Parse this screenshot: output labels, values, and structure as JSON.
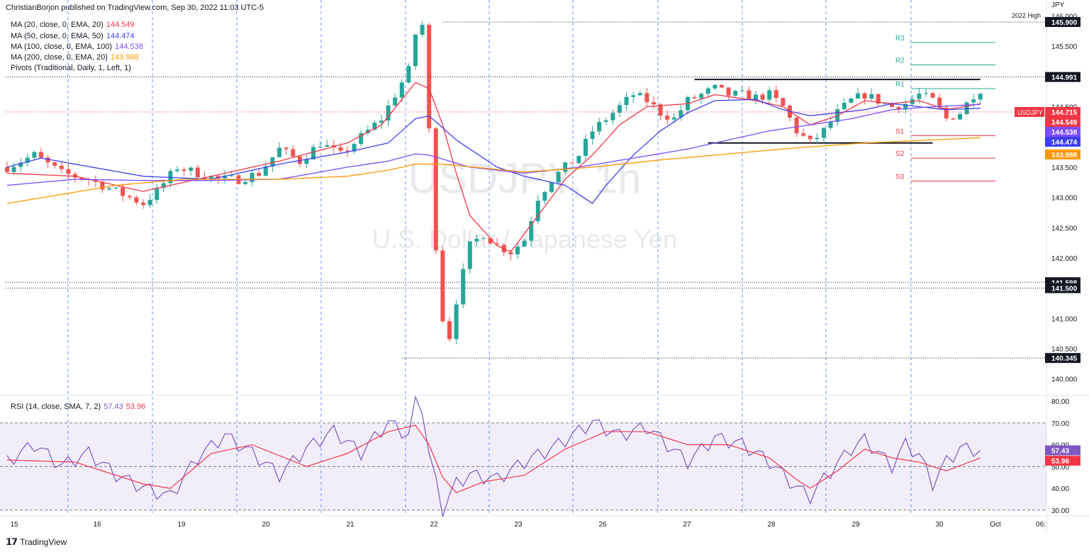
{
  "header": {
    "published": "ChristianBorjon published on TradingView.com, Sep 30, 2022 11:03 UTC-5"
  },
  "footer": {
    "brand": "TradingView",
    "logo": "tv-logo-icon"
  },
  "legend": [
    {
      "label": "MA (20, close, 0, EMA, 20)",
      "value": "144.549",
      "color": "#f23645"
    },
    {
      "label": "MA (50, close, 0, EMA, 50)",
      "value": "144.474",
      "color": "#3f3ff0"
    },
    {
      "label": "MA (100, close, 0, EMA, 100)",
      "value": "144.538",
      "color": "#7c4dff"
    },
    {
      "label": "MA (200, close, 0, EMA, 20)",
      "value": "143.988",
      "color": "#ff9800"
    },
    {
      "label": "Pivots (Traditional, Daily, 1, Left, 1)",
      "value": "",
      "color": "#131722"
    }
  ],
  "rsi_legend": {
    "label": "RSI (14, close, SMA, 7, 2)",
    "rsi": "57.43",
    "sma": "53.96"
  },
  "watermark": {
    "symbol": "USDJPY, 1h",
    "name": "U.S. Dollar / Japanese Yen"
  },
  "colors": {
    "up": "#26a69a",
    "down": "#ef5350",
    "rsi": "#7e57c2",
    "rsi_sma": "#f23645",
    "grid": "#2962ff"
  },
  "chart_data": {
    "type": "candlestick",
    "symbol": "USDJPY",
    "currency_label": "JPY",
    "timeframe": "1h",
    "ylim": [
      139.75,
      146.1
    ],
    "y_ticks": [
      "146.000",
      "145.500",
      "145.000",
      "144.500",
      "144.000",
      "143.500",
      "143.000",
      "142.500",
      "142.000",
      "141.500",
      "141.000",
      "140.500",
      "140.000"
    ],
    "x_ticks": [
      "15",
      "16",
      "19",
      "20",
      "21",
      "22",
      "23",
      "26",
      "27",
      "28",
      "29",
      "30",
      "Oct",
      "06:"
    ],
    "price_path": [
      [
        0,
        143.5
      ],
      [
        4,
        143.7
      ],
      [
        8,
        143.4
      ],
      [
        12,
        143.3
      ],
      [
        16,
        143.1
      ],
      [
        20,
        142.9
      ],
      [
        22,
        143.1
      ],
      [
        25,
        143.5
      ],
      [
        28,
        143.4
      ],
      [
        31,
        143.3
      ],
      [
        34,
        143.3
      ],
      [
        37,
        143.4
      ],
      [
        40,
        143.8
      ],
      [
        43,
        143.6
      ],
      [
        46,
        143.9
      ],
      [
        49,
        143.7
      ],
      [
        52,
        144.0
      ],
      [
        55,
        144.3
      ],
      [
        57,
        144.7
      ],
      [
        59,
        145.1
      ],
      [
        60,
        145.7
      ],
      [
        61,
        145.85
      ],
      [
        62,
        144.1
      ],
      [
        63,
        142.2
      ],
      [
        64,
        141.0
      ],
      [
        65,
        140.7
      ],
      [
        66,
        141.3
      ],
      [
        68,
        142.2
      ],
      [
        70,
        142.4
      ],
      [
        72,
        142.2
      ],
      [
        74,
        142.1
      ],
      [
        76,
        142.3
      ],
      [
        78,
        143.0
      ],
      [
        80,
        143.3
      ],
      [
        82,
        143.5
      ],
      [
        84,
        143.7
      ],
      [
        86,
        144.1
      ],
      [
        88,
        144.3
      ],
      [
        90,
        144.5
      ],
      [
        92,
        144.7
      ],
      [
        94,
        144.6
      ],
      [
        96,
        144.4
      ],
      [
        98,
        144.3
      ],
      [
        100,
        144.6
      ],
      [
        102,
        144.7
      ],
      [
        104,
        144.8
      ],
      [
        106,
        144.7
      ],
      [
        108,
        144.7
      ],
      [
        110,
        144.65
      ],
      [
        112,
        144.7
      ],
      [
        114,
        144.5
      ],
      [
        116,
        144.1
      ],
      [
        118,
        143.9
      ],
      [
        120,
        144.1
      ],
      [
        122,
        144.4
      ],
      [
        124,
        144.6
      ],
      [
        126,
        144.7
      ],
      [
        128,
        144.6
      ],
      [
        130,
        144.5
      ],
      [
        132,
        144.55
      ],
      [
        134,
        144.7
      ],
      [
        136,
        144.6
      ],
      [
        138,
        144.3
      ],
      [
        140,
        144.4
      ],
      [
        142,
        144.7
      ],
      [
        143,
        144.715
      ]
    ],
    "moving_averages": [
      {
        "name": "MA 20",
        "value": 144.549,
        "color": "#f23645",
        "path": [
          [
            0,
            143.4
          ],
          [
            10,
            143.35
          ],
          [
            20,
            143.1
          ],
          [
            30,
            143.35
          ],
          [
            40,
            143.6
          ],
          [
            50,
            143.9
          ],
          [
            55,
            144.2
          ],
          [
            60,
            144.9
          ],
          [
            62,
            144.8
          ],
          [
            64,
            144.2
          ],
          [
            66,
            143.4
          ],
          [
            68,
            142.7
          ],
          [
            72,
            142.2
          ],
          [
            74,
            142.1
          ],
          [
            78,
            142.7
          ],
          [
            82,
            143.3
          ],
          [
            86,
            143.7
          ],
          [
            90,
            144.2
          ],
          [
            94,
            144.5
          ],
          [
            100,
            144.55
          ],
          [
            104,
            144.7
          ],
          [
            110,
            144.6
          ],
          [
            114,
            144.5
          ],
          [
            118,
            144.2
          ],
          [
            122,
            144.35
          ],
          [
            126,
            144.6
          ],
          [
            130,
            144.55
          ],
          [
            134,
            144.6
          ],
          [
            138,
            144.45
          ],
          [
            143,
            144.549
          ]
        ]
      },
      {
        "name": "MA 50",
        "value": 144.474,
        "color": "#3f3ff0",
        "path": [
          [
            0,
            143.5
          ],
          [
            5,
            143.65
          ],
          [
            10,
            143.55
          ],
          [
            20,
            143.35
          ],
          [
            30,
            143.3
          ],
          [
            40,
            143.55
          ],
          [
            50,
            143.75
          ],
          [
            56,
            143.9
          ],
          [
            60,
            144.3
          ],
          [
            62,
            144.35
          ],
          [
            66,
            143.95
          ],
          [
            72,
            143.5
          ],
          [
            76,
            143.35
          ],
          [
            82,
            143.2
          ],
          [
            86,
            142.9
          ],
          [
            88,
            143.2
          ],
          [
            92,
            143.7
          ],
          [
            96,
            144.1
          ],
          [
            100,
            144.4
          ],
          [
            104,
            144.6
          ],
          [
            110,
            144.62
          ],
          [
            114,
            144.45
          ],
          [
            118,
            144.35
          ],
          [
            122,
            144.4
          ],
          [
            126,
            144.45
          ],
          [
            130,
            144.55
          ],
          [
            134,
            144.5
          ],
          [
            138,
            144.45
          ],
          [
            143,
            144.474
          ]
        ]
      },
      {
        "name": "MA 100",
        "value": 144.538,
        "color": "#7c4dff",
        "path": [
          [
            0,
            143.2
          ],
          [
            10,
            143.3
          ],
          [
            20,
            143.28
          ],
          [
            30,
            143.28
          ],
          [
            40,
            143.3
          ],
          [
            50,
            143.5
          ],
          [
            56,
            143.6
          ],
          [
            60,
            143.72
          ],
          [
            62,
            143.7
          ],
          [
            68,
            143.5
          ],
          [
            76,
            143.4
          ],
          [
            84,
            143.5
          ],
          [
            92,
            143.65
          ],
          [
            100,
            143.8
          ],
          [
            106,
            143.95
          ],
          [
            112,
            144.1
          ],
          [
            118,
            144.2
          ],
          [
            124,
            144.3
          ],
          [
            130,
            144.45
          ],
          [
            136,
            144.5
          ],
          [
            143,
            144.538
          ]
        ]
      },
      {
        "name": "MA 200",
        "value": 143.988,
        "color": "#ff9800",
        "path": [
          [
            0,
            142.9
          ],
          [
            8,
            143.05
          ],
          [
            16,
            143.2
          ],
          [
            26,
            143.3
          ],
          [
            40,
            143.3
          ],
          [
            50,
            143.35
          ],
          [
            56,
            143.45
          ],
          [
            60,
            143.55
          ],
          [
            64,
            143.55
          ],
          [
            76,
            143.42
          ],
          [
            86,
            143.5
          ],
          [
            96,
            143.62
          ],
          [
            106,
            143.72
          ],
          [
            116,
            143.82
          ],
          [
            126,
            143.9
          ],
          [
            136,
            143.95
          ],
          [
            143,
            143.988
          ]
        ]
      }
    ],
    "pivots": [
      {
        "label": "R3",
        "value": 145.56,
        "color": "#22ab94"
      },
      {
        "label": "R2",
        "value": 145.19,
        "color": "#22ab94"
      },
      {
        "label": "R1",
        "value": 144.8,
        "color": "#22ab94"
      },
      {
        "label": "S1",
        "value": 144.02,
        "color": "#f23645"
      },
      {
        "label": "S2",
        "value": 143.65,
        "color": "#f23645"
      },
      {
        "label": "S3",
        "value": 143.27,
        "color": "#f23645"
      }
    ],
    "horizontal_levels": [
      {
        "label": "145.900",
        "value": 145.9,
        "note": "2022 High",
        "style": "dotted"
      },
      {
        "label": "144.991",
        "value": 144.991,
        "style": "dotted"
      },
      {
        "label": "141.598",
        "value": 141.598,
        "style": "dotted"
      },
      {
        "label": "141.500",
        "value": 141.5,
        "style": "dotted"
      },
      {
        "label": "140.345",
        "value": 140.345,
        "style": "dotted"
      },
      {
        "value": 144.95,
        "style": "solid-black",
        "from_bar": 101,
        "to_bar": 143
      },
      {
        "value": 143.9,
        "style": "solid-black",
        "from_bar": 103,
        "to_bar": 136
      }
    ],
    "price_labels": [
      {
        "text": "USDJPY",
        "value": "144.715",
        "bg": "#f23645"
      },
      {
        "text": "",
        "value": "144.549",
        "bg": "#f23645"
      },
      {
        "text": "",
        "value": "144.538",
        "bg": "#7c4dff"
      },
      {
        "text": "",
        "value": "144.474",
        "bg": "#3f3ff0"
      },
      {
        "text": "",
        "value": "143.988",
        "bg": "#ff9800"
      }
    ],
    "rsi": {
      "ylim": [
        28,
        82
      ],
      "y_ticks": [
        "80.00",
        "70.00",
        "60.00",
        "50.00",
        "40.00",
        "30.00"
      ],
      "band": [
        30,
        70
      ],
      "last": 57.43,
      "sma_last": 53.96,
      "path": [
        [
          0,
          52
        ],
        [
          4,
          60
        ],
        [
          8,
          50
        ],
        [
          12,
          56
        ],
        [
          16,
          46
        ],
        [
          20,
          40
        ],
        [
          24,
          36
        ],
        [
          28,
          54
        ],
        [
          32,
          64
        ],
        [
          36,
          56
        ],
        [
          40,
          46
        ],
        [
          44,
          58
        ],
        [
          48,
          66
        ],
        [
          52,
          56
        ],
        [
          56,
          70
        ],
        [
          59,
          64
        ],
        [
          60,
          79
        ],
        [
          61,
          77
        ],
        [
          62,
          55
        ],
        [
          64,
          30
        ],
        [
          66,
          42
        ],
        [
          68,
          46
        ],
        [
          72,
          44
        ],
        [
          76,
          52
        ],
        [
          80,
          58
        ],
        [
          84,
          66
        ],
        [
          86,
          70
        ],
        [
          90,
          64
        ],
        [
          94,
          68
        ],
        [
          98,
          57
        ],
        [
          100,
          52
        ],
        [
          104,
          63
        ],
        [
          108,
          60
        ],
        [
          112,
          52
        ],
        [
          116,
          40
        ],
        [
          118,
          36
        ],
        [
          120,
          44
        ],
        [
          124,
          58
        ],
        [
          126,
          62
        ],
        [
          128,
          56
        ],
        [
          130,
          50
        ],
        [
          132,
          60
        ],
        [
          134,
          55
        ],
        [
          136,
          42
        ],
        [
          138,
          52
        ],
        [
          140,
          58
        ],
        [
          143,
          57.43
        ]
      ],
      "sma_path": [
        [
          0,
          53
        ],
        [
          10,
          52
        ],
        [
          20,
          42
        ],
        [
          24,
          40
        ],
        [
          30,
          56
        ],
        [
          36,
          60
        ],
        [
          44,
          50
        ],
        [
          50,
          56
        ],
        [
          56,
          66
        ],
        [
          60,
          69
        ],
        [
          62,
          60
        ],
        [
          64,
          45
        ],
        [
          66,
          38
        ],
        [
          70,
          43
        ],
        [
          76,
          46
        ],
        [
          82,
          58
        ],
        [
          88,
          66
        ],
        [
          94,
          66
        ],
        [
          100,
          60
        ],
        [
          106,
          60
        ],
        [
          112,
          54
        ],
        [
          116,
          44
        ],
        [
          118,
          40
        ],
        [
          122,
          48
        ],
        [
          126,
          58
        ],
        [
          130,
          54
        ],
        [
          134,
          52
        ],
        [
          138,
          48
        ],
        [
          143,
          53.96
        ]
      ]
    }
  }
}
